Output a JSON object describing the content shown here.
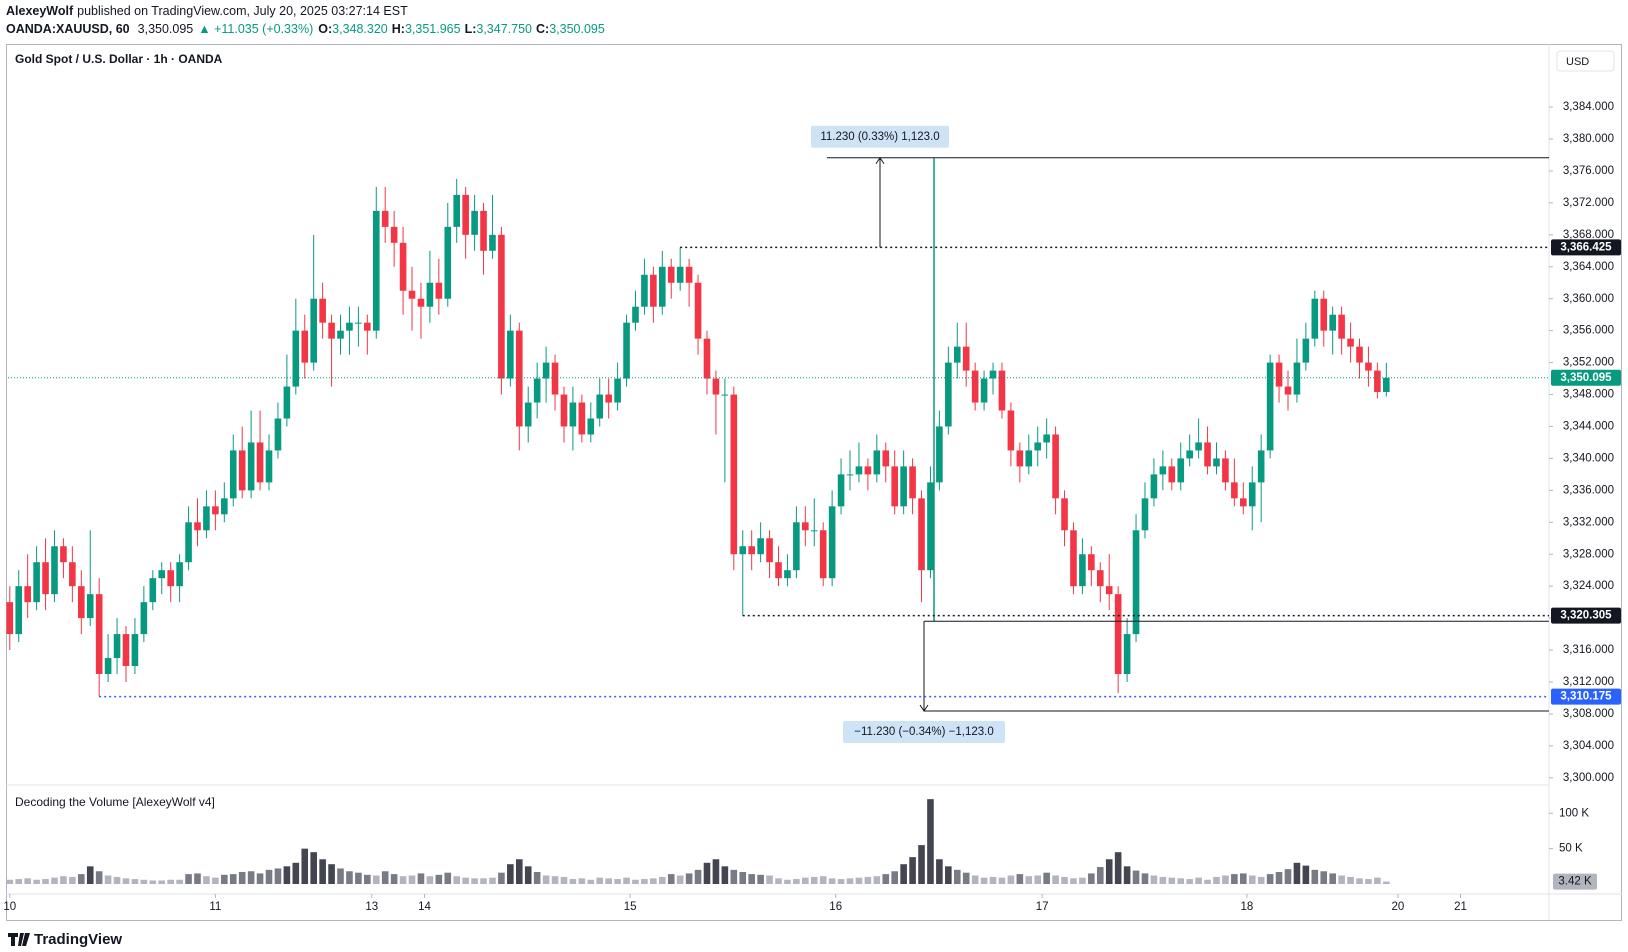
{
  "header": {
    "author": "AlexeyWolf",
    "published": "published on TradingView.com, July 20, 2025 03:27:14 EST",
    "symbol": "OANDA:XAUUSD, 60",
    "last": "3,350.095",
    "change": "▲ +11.035 (+0.33%)",
    "ohlc": [
      [
        "O:",
        "3,348.320"
      ],
      [
        "H:",
        "3,351.965"
      ],
      [
        "L:",
        "3,347.750"
      ],
      [
        "C:",
        "3,350.095"
      ]
    ],
    "logo": "TradingView"
  },
  "chart_data": {
    "type": "candlestick",
    "title": "Gold Spot / U.S. Dollar · 1h · OANDA",
    "currency": "USD",
    "colors": {
      "up": "#089981",
      "down": "#f23645"
    },
    "grid": false,
    "xlim": [
      -0.2,
      172.2
    ],
    "xticks": [
      {
        "value": 0,
        "label": "10"
      },
      {
        "value": 23,
        "label": "11"
      },
      {
        "value": 40.5,
        "label": "13"
      },
      {
        "value": 46.4,
        "label": "14"
      },
      {
        "value": 69.4,
        "label": "15"
      },
      {
        "value": 92.4,
        "label": "16"
      },
      {
        "value": 115.5,
        "label": "17"
      },
      {
        "value": 138.4,
        "label": "18"
      },
      {
        "value": 155.3,
        "label": "20"
      },
      {
        "value": 162.3,
        "label": "21"
      }
    ],
    "ylim": [
      3299.1,
      3391.9
    ],
    "yticks": [
      {
        "value": 3300,
        "label": "3,300.000"
      },
      {
        "value": 3304,
        "label": "3,304.000"
      },
      {
        "value": 3308,
        "label": "3,308.000"
      },
      {
        "value": 3312,
        "label": "3,312.000"
      },
      {
        "value": 3316,
        "label": "3,316.000"
      },
      {
        "value": 3320,
        "label": "3,320.000"
      },
      {
        "value": 3324,
        "label": "3,324.000"
      },
      {
        "value": 3328,
        "label": "3,328.000"
      },
      {
        "value": 3332,
        "label": "3,332.000"
      },
      {
        "value": 3336,
        "label": "3,336.000"
      },
      {
        "value": 3340,
        "label": "3,340.000"
      },
      {
        "value": 3344,
        "label": "3,344.000"
      },
      {
        "value": 3348,
        "label": "3,348.000"
      },
      {
        "value": 3352,
        "label": "3,352.000"
      },
      {
        "value": 3356,
        "label": "3,356.000"
      },
      {
        "value": 3360,
        "label": "3,360.000"
      },
      {
        "value": 3364,
        "label": "3,364.000"
      },
      {
        "value": 3368,
        "label": "3,368.000"
      },
      {
        "value": 3372,
        "label": "3,372.000"
      },
      {
        "value": 3376,
        "label": "3,376.000"
      },
      {
        "value": 3380,
        "label": "3,380.000"
      },
      {
        "value": 3384,
        "label": "3,384.000"
      }
    ],
    "candles": [
      [
        3322,
        3324,
        3316,
        3318
      ],
      [
        3318,
        3326,
        3317,
        3324
      ],
      [
        3324,
        3328,
        3320,
        3322
      ],
      [
        3322,
        3329,
        3321,
        3327
      ],
      [
        3327,
        3330,
        3321,
        3323
      ],
      [
        3323,
        3331,
        3322,
        3329
      ],
      [
        3329,
        3330,
        3325,
        3327
      ],
      [
        3327,
        3329,
        3322,
        3324
      ],
      [
        3324,
        3326,
        3318,
        3320
      ],
      [
        3320,
        3331,
        3319,
        3323
      ],
      [
        3323,
        3325,
        3310.175,
        3313
      ],
      [
        3313,
        3318,
        3312,
        3315
      ],
      [
        3315,
        3320,
        3313,
        3318
      ],
      [
        3318,
        3319,
        3312,
        3314
      ],
      [
        3314,
        3320,
        3313,
        3318
      ],
      [
        3318,
        3324,
        3317,
        3322
      ],
      [
        3322,
        3326,
        3321,
        3325
      ],
      [
        3325,
        3327,
        3323,
        3326
      ],
      [
        3326,
        3327,
        3322,
        3324
      ],
      [
        3324,
        3328,
        3322,
        3327
      ],
      [
        3327,
        3334,
        3326,
        3332
      ],
      [
        3332,
        3335,
        3329,
        3331
      ],
      [
        3331,
        3336,
        3330,
        3334
      ],
      [
        3334,
        3336,
        3331,
        3333
      ],
      [
        3333,
        3337,
        3332,
        3335
      ],
      [
        3335,
        3343,
        3334,
        3341
      ],
      [
        3341,
        3344,
        3335,
        3336
      ],
      [
        3336,
        3346,
        3335,
        3342
      ],
      [
        3342,
        3346,
        3336,
        3337
      ],
      [
        3337,
        3343,
        3336,
        3341
      ],
      [
        3341,
        3347,
        3340,
        3345
      ],
      [
        3345,
        3353,
        3344,
        3349
      ],
      [
        3349,
        3360,
        3348,
        3356
      ],
      [
        3356,
        3358,
        3350,
        3352
      ],
      [
        3352,
        3368,
        3351,
        3360
      ],
      [
        3360,
        3362,
        3355,
        3357
      ],
      [
        3357,
        3358,
        3349,
        3355
      ],
      [
        3355,
        3358,
        3353,
        3356
      ],
      [
        3356,
        3359,
        3353,
        3357
      ],
      [
        3357,
        3359,
        3354,
        3357
      ],
      [
        3357,
        3358,
        3353,
        3356
      ],
      [
        3356,
        3374,
        3355,
        3371
      ],
      [
        3371,
        3374,
        3367,
        3369
      ],
      [
        3369,
        3371,
        3364,
        3367
      ],
      [
        3367,
        3369,
        3358,
        3361
      ],
      [
        3361,
        3364,
        3356,
        3360
      ],
      [
        3360,
        3362,
        3355,
        3359
      ],
      [
        3359,
        3366,
        3357,
        3362
      ],
      [
        3362,
        3365,
        3358,
        3360
      ],
      [
        3360,
        3372,
        3359,
        3369
      ],
      [
        3369,
        3375,
        3367,
        3373
      ],
      [
        3373,
        3374,
        3365,
        3368
      ],
      [
        3368,
        3373,
        3366,
        3371
      ],
      [
        3371,
        3372,
        3363,
        3366
      ],
      [
        3366,
        3373,
        3365,
        3368
      ],
      [
        3368,
        3369,
        3348,
        3350
      ],
      [
        3350,
        3358,
        3349,
        3356
      ],
      [
        3356,
        3357,
        3341,
        3344
      ],
      [
        3344,
        3349,
        3342,
        3347
      ],
      [
        3347,
        3352,
        3345,
        3350
      ],
      [
        3350,
        3354,
        3347,
        3352
      ],
      [
        3352,
        3353,
        3346,
        3348
      ],
      [
        3348,
        3349,
        3342,
        3344
      ],
      [
        3344,
        3349,
        3341,
        3347
      ],
      [
        3347,
        3348,
        3342,
        3343
      ],
      [
        3343,
        3347,
        3342,
        3345
      ],
      [
        3345,
        3350,
        3344,
        3348
      ],
      [
        3348,
        3350,
        3345,
        3347
      ],
      [
        3347,
        3352,
        3346,
        3350
      ],
      [
        3350,
        3358,
        3349,
        3357
      ],
      [
        3357,
        3361,
        3356,
        3359
      ],
      [
        3359,
        3365,
        3358,
        3363
      ],
      [
        3363,
        3364,
        3357,
        3359
      ],
      [
        3359,
        3366,
        3358,
        3364
      ],
      [
        3364,
        3365,
        3360,
        3362
      ],
      [
        3362,
        3366.425,
        3361,
        3364
      ],
      [
        3364,
        3365,
        3359,
        3362
      ],
      [
        3362,
        3363,
        3353,
        3355
      ],
      [
        3355,
        3356,
        3348,
        3350
      ],
      [
        3350,
        3351,
        3343,
        3348
      ],
      [
        3348,
        3350,
        3337,
        3348
      ],
      [
        3348,
        3349,
        3326,
        3328
      ],
      [
        3328,
        3331,
        3320.305,
        3329
      ],
      [
        3329,
        3331,
        3326,
        3328
      ],
      [
        3328,
        3332,
        3327,
        3330
      ],
      [
        3330,
        3331,
        3325,
        3327
      ],
      [
        3327,
        3329,
        3324,
        3325
      ],
      [
        3325,
        3328,
        3324,
        3326
      ],
      [
        3326,
        3334,
        3325,
        3332
      ],
      [
        3332,
        3334,
        3329,
        3331
      ],
      [
        3331,
        3335,
        3329,
        3331
      ],
      [
        3331,
        3332,
        3324,
        3325
      ],
      [
        3325,
        3336,
        3324,
        3334
      ],
      [
        3334,
        3340,
        3333,
        3338
      ],
      [
        3338,
        3341,
        3336,
        3338
      ],
      [
        3338,
        3342,
        3337,
        3339
      ],
      [
        3339,
        3340,
        3336,
        3338
      ],
      [
        3338,
        3343,
        3337,
        3341
      ],
      [
        3341,
        3342,
        3337,
        3339
      ],
      [
        3339,
        3341,
        3333,
        3334
      ],
      [
        3334,
        3341,
        3333,
        3339
      ],
      [
        3339,
        3340,
        3333,
        3335
      ],
      [
        3335,
        3336,
        3322,
        3326
      ],
      [
        3326,
        3339,
        3325,
        3337
      ],
      [
        3337,
        3346,
        3336,
        3344
      ],
      [
        3344,
        3354,
        3343,
        3352
      ],
      [
        3352,
        3357,
        3350,
        3354
      ],
      [
        3354,
        3357,
        3349,
        3351
      ],
      [
        3351,
        3352,
        3346,
        3347
      ],
      [
        3347,
        3351,
        3346,
        3350
      ],
      [
        3350,
        3352,
        3348,
        3351
      ],
      [
        3351,
        3352,
        3345,
        3346
      ],
      [
        3346,
        3347,
        3339,
        3341
      ],
      [
        3341,
        3342,
        3337,
        3339
      ],
      [
        3339,
        3343,
        3338,
        3341
      ],
      [
        3341,
        3344,
        3339,
        3342
      ],
      [
        3342,
        3345,
        3340,
        3343
      ],
      [
        3343,
        3344,
        3333,
        3335
      ],
      [
        3335,
        3336,
        3329,
        3331
      ],
      [
        3331,
        3332,
        3323,
        3324
      ],
      [
        3324,
        3330,
        3323,
        3328
      ],
      [
        3328,
        3329,
        3324,
        3326
      ],
      [
        3326,
        3327,
        3322,
        3324
      ],
      [
        3324,
        3328,
        3321,
        3323
      ],
      [
        3323,
        3324,
        3310.6,
        3313
      ],
      [
        3313,
        3320,
        3312,
        3318
      ],
      [
        3318,
        3333,
        3317,
        3331
      ],
      [
        3331,
        3337,
        3330,
        3335
      ],
      [
        3335,
        3340,
        3334,
        3338
      ],
      [
        3338,
        3341,
        3336,
        3339
      ],
      [
        3339,
        3340,
        3336,
        3337
      ],
      [
        3337,
        3342,
        3336,
        3340
      ],
      [
        3340,
        3343,
        3339,
        3341
      ],
      [
        3341,
        3345,
        3340,
        3342
      ],
      [
        3342,
        3344,
        3338,
        3339
      ],
      [
        3339,
        3342,
        3338,
        3340
      ],
      [
        3340,
        3341,
        3336,
        3337
      ],
      [
        3337,
        3340,
        3334,
        3335
      ],
      [
        3335,
        3337,
        3333,
        3334
      ],
      [
        3334,
        3339,
        3331,
        3337
      ],
      [
        3337,
        3343,
        3332,
        3341
      ],
      [
        3341,
        3353,
        3340,
        3352
      ],
      [
        3352,
        3353,
        3347,
        3349
      ],
      [
        3349,
        3351,
        3346,
        3348
      ],
      [
        3348,
        3355,
        3347,
        3352
      ],
      [
        3352,
        3357,
        3351,
        3355
      ],
      [
        3355,
        3361,
        3354,
        3360
      ],
      [
        3360,
        3361,
        3354,
        3356
      ],
      [
        3356,
        3359,
        3353,
        3358
      ],
      [
        3358,
        3359,
        3353,
        3355
      ],
      [
        3355,
        3357,
        3352,
        3354
      ],
      [
        3354,
        3355,
        3350,
        3352
      ],
      [
        3352,
        3354,
        3349,
        3351
      ],
      [
        3351,
        3352,
        3347.5,
        3348.32
      ],
      [
        3348.32,
        3351.965,
        3347.75,
        3350.095
      ]
    ],
    "levels": [
      {
        "value": 3366.425,
        "label": "3,366.425",
        "color": "#131722"
      },
      {
        "value": 3320.305,
        "label": "3,320.305",
        "color": "#131722"
      },
      {
        "value": 3310.175,
        "label": "3,310.175",
        "color": "#2962ff"
      }
    ],
    "last_price": {
      "value": 3350.095,
      "label": "3,350.095",
      "color": "#089981"
    },
    "measures": [
      {
        "label": "11.230 (0.33%) 1,123.0",
        "from": 3366.425,
        "to": 3377.655
      },
      {
        "label": "−11.230 (−0.34%) −1,123.0",
        "from": 3319.6,
        "to": 3308.37
      }
    ],
    "volume": {
      "title": "Decoding the Volume [AlexeyWolf v4]",
      "ylim": [
        0,
        140000
      ],
      "yticks": [
        {
          "value": 50000,
          "label": "50 K"
        },
        {
          "value": 100000,
          "label": "100 K"
        }
      ],
      "last": {
        "value": 3420,
        "label": "3.42 K"
      },
      "values": [
        6000,
        7000,
        8000,
        6000,
        7000,
        9000,
        11000,
        10000,
        14000,
        25000,
        18000,
        12000,
        10000,
        8000,
        7000,
        6000,
        5000,
        5000,
        6000,
        6000,
        14000,
        15000,
        11000,
        9000,
        13000,
        14000,
        17000,
        18000,
        15000,
        20000,
        22000,
        25000,
        30000,
        50000,
        45000,
        35000,
        28000,
        22000,
        18000,
        16000,
        13000,
        12000,
        18000,
        14000,
        11000,
        12000,
        15000,
        11000,
        13000,
        16000,
        11000,
        9000,
        8000,
        8000,
        9000,
        16000,
        28000,
        35000,
        25000,
        17000,
        12000,
        11000,
        10000,
        7000,
        8000,
        6000,
        9000,
        8000,
        7000,
        9000,
        6000,
        7000,
        8000,
        10000,
        14000,
        12000,
        15000,
        20000,
        30000,
        35000,
        25000,
        20000,
        17000,
        14000,
        13000,
        12000,
        8000,
        6000,
        7000,
        9000,
        10000,
        11000,
        8000,
        7000,
        8000,
        9000,
        10000,
        11000,
        14000,
        18000,
        28000,
        38000,
        55000,
        120000,
        35000,
        25000,
        20000,
        16000,
        12000,
        9000,
        10000,
        9000,
        12000,
        14000,
        11000,
        12000,
        16000,
        12000,
        10000,
        8000,
        9000,
        15000,
        24000,
        35000,
        45000,
        25000,
        19000,
        15000,
        12000,
        10000,
        9000,
        8000,
        7000,
        9000,
        6000,
        10000,
        12000,
        14000,
        15000,
        12000,
        10000,
        14000,
        17000,
        21000,
        30000,
        26000,
        20000,
        18000,
        15000,
        12000,
        10000,
        8000,
        7000,
        9000,
        3420
      ]
    }
  }
}
